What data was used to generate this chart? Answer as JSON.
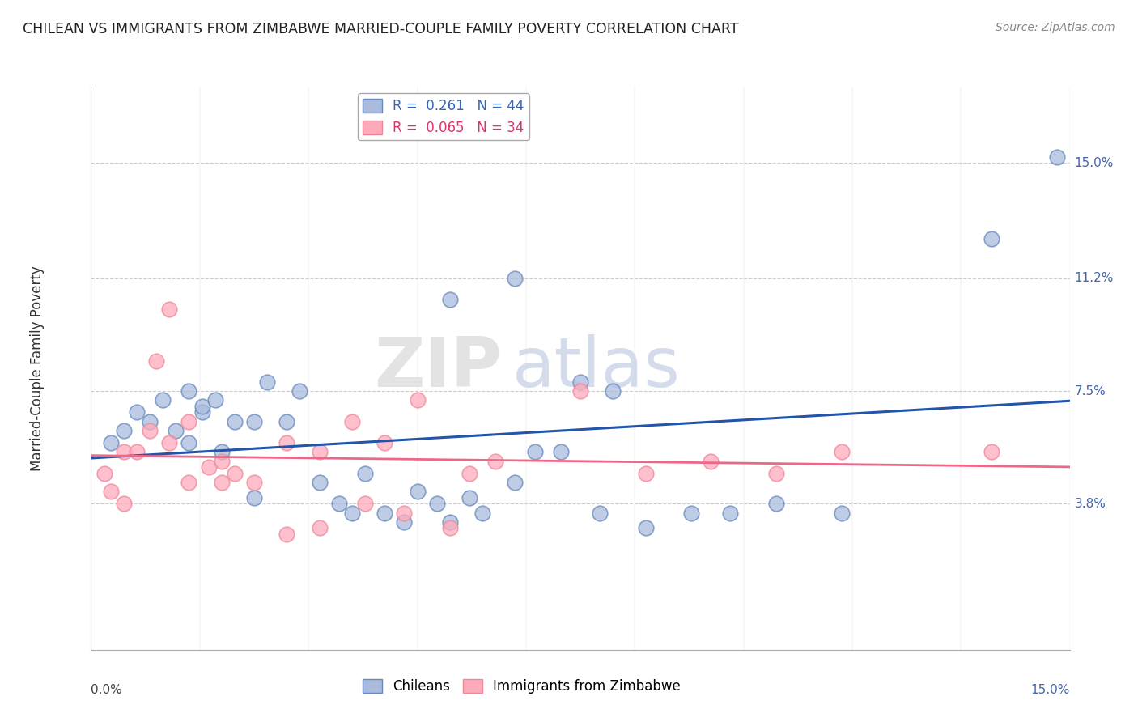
{
  "title": "CHILEAN VS IMMIGRANTS FROM ZIMBABWE MARRIED-COUPLE FAMILY POVERTY CORRELATION CHART",
  "source": "Source: ZipAtlas.com",
  "ylabel": "Married-Couple Family Poverty",
  "y_ticks": [
    3.8,
    7.5,
    11.2,
    15.0
  ],
  "y_tick_labels": [
    "3.8%",
    "7.5%",
    "11.2%",
    "15.0%"
  ],
  "xlim": [
    0.0,
    15.0
  ],
  "ylim": [
    -1.0,
    17.5
  ],
  "legend1_r": "R =  0.261",
  "legend1_n": "N = 44",
  "legend2_r": "R =  0.065",
  "legend2_n": "N = 34",
  "blue_fill": "#AABBDD",
  "blue_edge": "#6688BB",
  "pink_fill": "#FFAABB",
  "pink_edge": "#EE8899",
  "blue_line_color": "#2255AA",
  "pink_line_color": "#EE6688",
  "watermark_zip": "ZIP",
  "watermark_atlas": "atlas",
  "chileans_x": [
    0.3,
    0.5,
    0.7,
    0.9,
    1.1,
    1.3,
    1.5,
    1.5,
    1.7,
    1.7,
    1.9,
    2.0,
    2.2,
    2.5,
    2.5,
    2.7,
    3.0,
    3.2,
    3.5,
    3.8,
    4.0,
    4.2,
    4.5,
    4.8,
    5.0,
    5.3,
    5.5,
    5.8,
    6.0,
    6.5,
    6.8,
    7.2,
    7.8,
    8.5,
    9.2,
    9.8,
    10.5,
    11.5,
    13.8,
    14.8,
    5.5,
    6.5,
    7.5,
    8.0
  ],
  "chileans_y": [
    5.8,
    6.2,
    6.8,
    6.5,
    7.2,
    6.2,
    7.5,
    5.8,
    6.8,
    7.0,
    7.2,
    5.5,
    6.5,
    4.0,
    6.5,
    7.8,
    6.5,
    7.5,
    4.5,
    3.8,
    3.5,
    4.8,
    3.5,
    3.2,
    4.2,
    3.8,
    3.2,
    4.0,
    3.5,
    4.5,
    5.5,
    5.5,
    3.5,
    3.0,
    3.5,
    3.5,
    3.8,
    3.5,
    12.5,
    15.2,
    10.5,
    11.2,
    7.8,
    7.5
  ],
  "zimbabwe_x": [
    0.2,
    0.3,
    0.5,
    0.5,
    0.7,
    0.9,
    1.0,
    1.2,
    1.2,
    1.5,
    1.5,
    1.8,
    2.0,
    2.0,
    2.2,
    2.5,
    3.0,
    3.5,
    4.0,
    4.2,
    4.5,
    5.0,
    5.8,
    6.2,
    7.5,
    8.5,
    9.5,
    10.5,
    11.5,
    13.8,
    3.0,
    3.5,
    4.8,
    5.5
  ],
  "zimbabwe_y": [
    4.8,
    4.2,
    3.8,
    5.5,
    5.5,
    6.2,
    8.5,
    10.2,
    5.8,
    6.5,
    4.5,
    5.0,
    5.2,
    4.5,
    4.8,
    4.5,
    5.8,
    5.5,
    6.5,
    3.8,
    5.8,
    7.2,
    4.8,
    5.2,
    7.5,
    4.8,
    5.2,
    4.8,
    5.5,
    5.5,
    2.8,
    3.0,
    3.5,
    3.0
  ]
}
